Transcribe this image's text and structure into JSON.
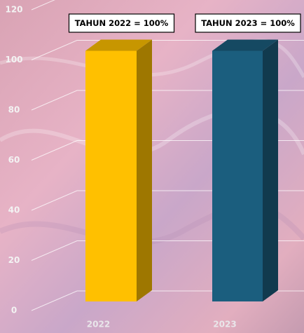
{
  "chart_data": {
    "type": "bar3d",
    "categories": [
      "2022",
      "2023"
    ],
    "values": [
      100,
      100
    ],
    "value_labels": [
      "TAHUN 2022 = 100%",
      "TAHUN 2023 = 100%"
    ],
    "colors": [
      "#ffc000",
      "#1b5e7e"
    ],
    "ylim": [
      0,
      120
    ],
    "yticks": [
      0,
      20,
      40,
      60,
      80,
      100,
      120
    ],
    "grid": true
  }
}
